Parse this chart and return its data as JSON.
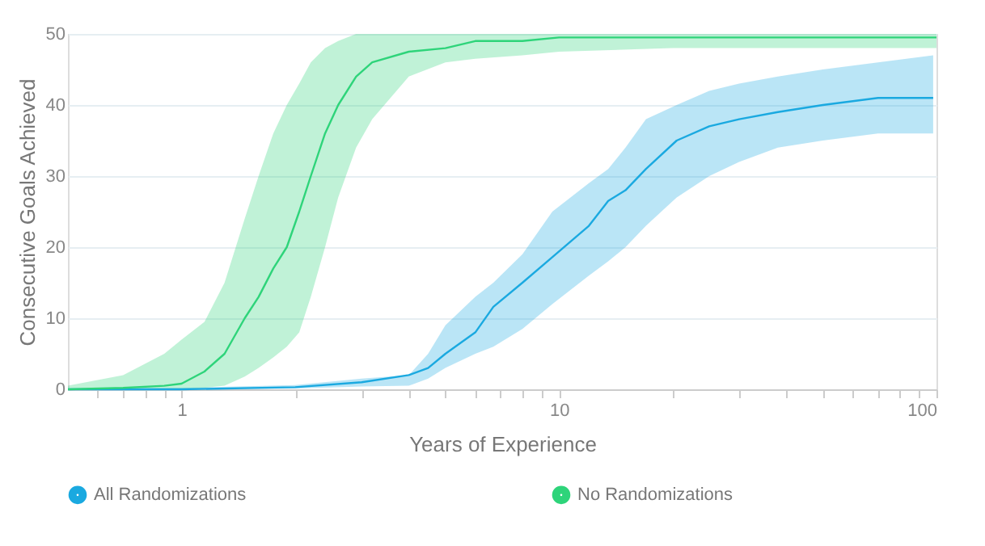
{
  "chart_data": {
    "type": "line",
    "xlabel": "Years of Experience",
    "ylabel": "Consecutive Goals Achieved",
    "xlim": [
      0.5,
      100
    ],
    "ylim": [
      0,
      50
    ],
    "xticks": [
      {
        "value": 0.6,
        "label": null
      },
      {
        "value": 0.7,
        "label": null
      },
      {
        "value": 0.8,
        "label": null
      },
      {
        "value": 0.9,
        "label": null
      },
      1,
      {
        "value": 2,
        "label": null
      },
      {
        "value": 3,
        "label": null
      },
      {
        "value": 4,
        "label": null
      },
      {
        "value": 5,
        "label": null
      },
      {
        "value": 6,
        "label": null
      },
      {
        "value": 7,
        "label": null
      },
      {
        "value": 8,
        "label": null
      },
      {
        "value": 9,
        "label": null
      },
      10,
      {
        "value": 20,
        "label": null
      },
      {
        "value": 30,
        "label": null
      },
      {
        "value": 40,
        "label": null
      },
      {
        "value": 50,
        "label": null
      },
      {
        "value": 60,
        "label": null
      },
      {
        "value": 70,
        "label": null
      },
      {
        "value": 80,
        "label": null
      },
      {
        "value": 90,
        "label": null
      },
      100
    ],
    "yticks": [
      0,
      10,
      20,
      30,
      40,
      50
    ],
    "log": "x",
    "grid": "y",
    "legend": "bottom",
    "series": [
      {
        "name": "All Randomizations",
        "color": "#1aa9e0",
        "x": [
          0.5,
          1,
          2,
          3,
          4,
          4.5,
          5,
          6,
          6.7,
          8,
          9.6,
          12,
          13.5,
          15,
          17,
          20.5,
          25,
          30,
          38,
          50,
          70,
          98
        ],
        "values": [
          0,
          0,
          0.3,
          1,
          2,
          3,
          5,
          8,
          11.6,
          15,
          18.6,
          23,
          26.5,
          28,
          31,
          35,
          37,
          38,
          39,
          40,
          41,
          41
        ],
        "lower": [
          0,
          0,
          0.1,
          0.4,
          0.5,
          1.5,
          3,
          5,
          6,
          8.5,
          12,
          16,
          18,
          20,
          23,
          27,
          30,
          32,
          34,
          35,
          36,
          36
        ],
        "upper": [
          0.1,
          0.2,
          0.6,
          1.5,
          2,
          5,
          9,
          13,
          15,
          19,
          25,
          29,
          31,
          34,
          38,
          40,
          42,
          43,
          44,
          45,
          46,
          47
        ]
      },
      {
        "name": "No Randomizations",
        "color": "#2ed47a",
        "x": [
          0.5,
          0.7,
          0.9,
          1,
          1.15,
          1.3,
          1.47,
          1.6,
          1.75,
          1.9,
          2.05,
          2.2,
          2.4,
          2.6,
          2.9,
          3.2,
          4,
          5,
          6,
          8,
          10,
          20,
          50,
          100
        ],
        "values": [
          0,
          0.2,
          0.5,
          0.8,
          2.5,
          5,
          10,
          13,
          17,
          20,
          25,
          30,
          36,
          40,
          44,
          46,
          47.5,
          48,
          49,
          49,
          49.5,
          49.5,
          49.5,
          49.5
        ],
        "lower": [
          0,
          0,
          0,
          0,
          0.2,
          0.5,
          1.8,
          3,
          4.5,
          6,
          8,
          13,
          20,
          27,
          34,
          38,
          44,
          46,
          46.5,
          47,
          47.5,
          48,
          48,
          48
        ],
        "upper": [
          0.5,
          2,
          5,
          7,
          9.5,
          15,
          24,
          30,
          36,
          40,
          43,
          46,
          48,
          49,
          50,
          50,
          50,
          50,
          50,
          50,
          50,
          50,
          50,
          50
        ]
      }
    ]
  }
}
